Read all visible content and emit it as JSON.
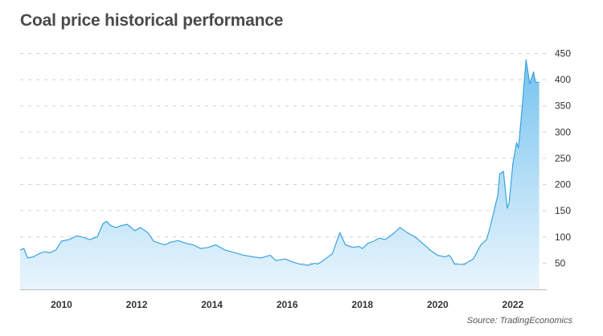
{
  "title": "Coal price historical performance",
  "source": "Source: TradingEconomics",
  "colors": {
    "line": "#3aa3e0",
    "fill_top": "#74c2ee",
    "fill_bottom": "#e6f4fc",
    "grid": "#cfcfcf",
    "axis": "#bdbdbd"
  },
  "chart_data": {
    "type": "area",
    "title": "Coal price historical performance",
    "xlabel": "",
    "ylabel": "",
    "xlim": [
      2008.9,
      2022.9
    ],
    "ylim": [
      0,
      460
    ],
    "y_ticks": [
      50,
      100,
      150,
      200,
      250,
      300,
      350,
      400,
      450
    ],
    "x_ticks": [
      2010,
      2012,
      2014,
      2016,
      2018,
      2020,
      2022
    ],
    "grid": true,
    "y_axis_position": "right",
    "series": [
      {
        "x": [
          2008.9,
          2009.0,
          2009.1,
          2009.25,
          2009.4,
          2009.55,
          2009.7,
          2009.85,
          2010.0,
          2010.2,
          2010.4,
          2010.55,
          2010.75,
          2010.95,
          2011.1,
          2011.2,
          2011.3,
          2011.45,
          2011.6,
          2011.75,
          2011.95,
          2012.1,
          2012.3,
          2012.45,
          2012.6,
          2012.75,
          2012.9,
          2013.1,
          2013.3,
          2013.5,
          2013.7,
          2013.9,
          2014.1,
          2014.35,
          2014.6,
          2014.85,
          2015.1,
          2015.3,
          2015.55,
          2015.7,
          2015.95,
          2016.15,
          2016.35,
          2016.55,
          2016.75,
          2016.8,
          2016.9,
          2017.05,
          2017.2,
          2017.4,
          2017.55,
          2017.75,
          2017.9,
          2018.0,
          2018.15,
          2018.3,
          2018.45,
          2018.6,
          2018.8,
          2019.0,
          2019.2,
          2019.4,
          2019.6,
          2019.8,
          2020.0,
          2020.2,
          2020.3,
          2020.35,
          2020.45,
          2020.6,
          2020.7,
          2020.8,
          2020.95,
          2021.05,
          2021.15,
          2021.3,
          2021.4,
          2021.5,
          2021.6,
          2021.65,
          2021.75,
          2021.85,
          2021.9,
          2022.0,
          2022.1,
          2022.15,
          2022.25,
          2022.35,
          2022.45,
          2022.55,
          2022.6,
          2022.7
        ],
        "y": [
          75,
          78,
          60,
          62,
          68,
          72,
          70,
          75,
          92,
          95,
          102,
          100,
          95,
          100,
          125,
          130,
          122,
          118,
          122,
          124,
          112,
          118,
          108,
          92,
          88,
          85,
          90,
          93,
          88,
          85,
          78,
          80,
          85,
          75,
          70,
          65,
          62,
          60,
          65,
          55,
          58,
          52,
          48,
          46,
          50,
          48,
          52,
          60,
          68,
          108,
          85,
          80,
          82,
          78,
          88,
          92,
          98,
          95,
          105,
          118,
          108,
          100,
          88,
          75,
          65,
          62,
          65,
          62,
          48,
          48,
          47,
          52,
          58,
          72,
          85,
          95,
          120,
          150,
          180,
          220,
          225,
          155,
          165,
          240,
          280,
          270,
          350,
          438,
          392,
          415,
          395,
          395
        ]
      }
    ]
  }
}
